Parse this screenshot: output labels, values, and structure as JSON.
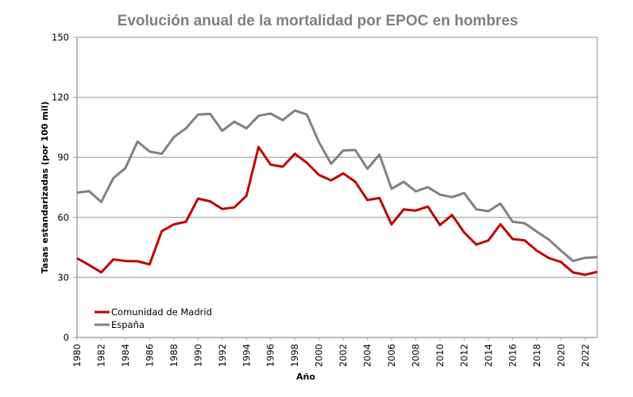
{
  "chart_data": {
    "type": "line",
    "title": "Evolución anual de la mortalidad por EPOC en hombres",
    "xlabel": "Año",
    "ylabel": "Tasas estandarizadas (por 100 mil)",
    "ylim": [
      0,
      150
    ],
    "yticks": [
      0,
      30,
      60,
      90,
      120,
      150
    ],
    "xlim": [
      1980,
      2023
    ],
    "xticks": [
      1980,
      1982,
      1984,
      1986,
      1988,
      1990,
      1992,
      1994,
      1996,
      1998,
      2000,
      2002,
      2004,
      2006,
      2008,
      2010,
      2012,
      2014,
      2016,
      2018,
      2020,
      2022
    ],
    "grid": true,
    "legend_position": "bottom-left",
    "x": [
      1980,
      1981,
      1982,
      1983,
      1984,
      1985,
      1986,
      1987,
      1988,
      1989,
      1990,
      1991,
      1992,
      1993,
      1994,
      1995,
      1996,
      1997,
      1998,
      1999,
      2000,
      2001,
      2002,
      2003,
      2004,
      2005,
      2006,
      2007,
      2008,
      2009,
      2010,
      2011,
      2012,
      2013,
      2014,
      2015,
      2016,
      2017,
      2018,
      2019,
      2020,
      2021,
      2022,
      2023
    ],
    "series": [
      {
        "name": "Comunidad de Madrid",
        "color": "#c00000",
        "values": [
          39.6,
          36.2,
          32.5,
          39.0,
          38.2,
          38.1,
          36.5,
          53.1,
          56.5,
          57.8,
          69.4,
          68.0,
          64.2,
          65.0,
          70.8,
          95.2,
          86.4,
          85.3,
          91.8,
          87.3,
          81.2,
          78.5,
          82.0,
          77.8,
          68.7,
          69.7,
          56.5,
          64.0,
          63.4,
          65.4,
          56.2,
          61.2,
          52.5,
          46.4,
          48.5,
          56.6,
          49.2,
          48.5,
          43.4,
          39.7,
          37.7,
          32.5,
          31.3,
          32.8
        ]
      },
      {
        "name": "España",
        "color": "#808080",
        "values": [
          72.4,
          73.1,
          67.7,
          79.6,
          84.6,
          97.9,
          92.9,
          91.8,
          100.1,
          104.5,
          111.4,
          111.7,
          103.3,
          107.8,
          104.5,
          110.8,
          111.9,
          108.6,
          113.4,
          111.4,
          97.5,
          86.8,
          93.4,
          93.7,
          84.3,
          91.4,
          74.3,
          77.8,
          73.0,
          75.1,
          71.4,
          70.1,
          72.2,
          64.0,
          63.1,
          66.9,
          57.8,
          57.1,
          52.9,
          48.9,
          43.4,
          38.2,
          39.8,
          40.2
        ]
      }
    ]
  }
}
